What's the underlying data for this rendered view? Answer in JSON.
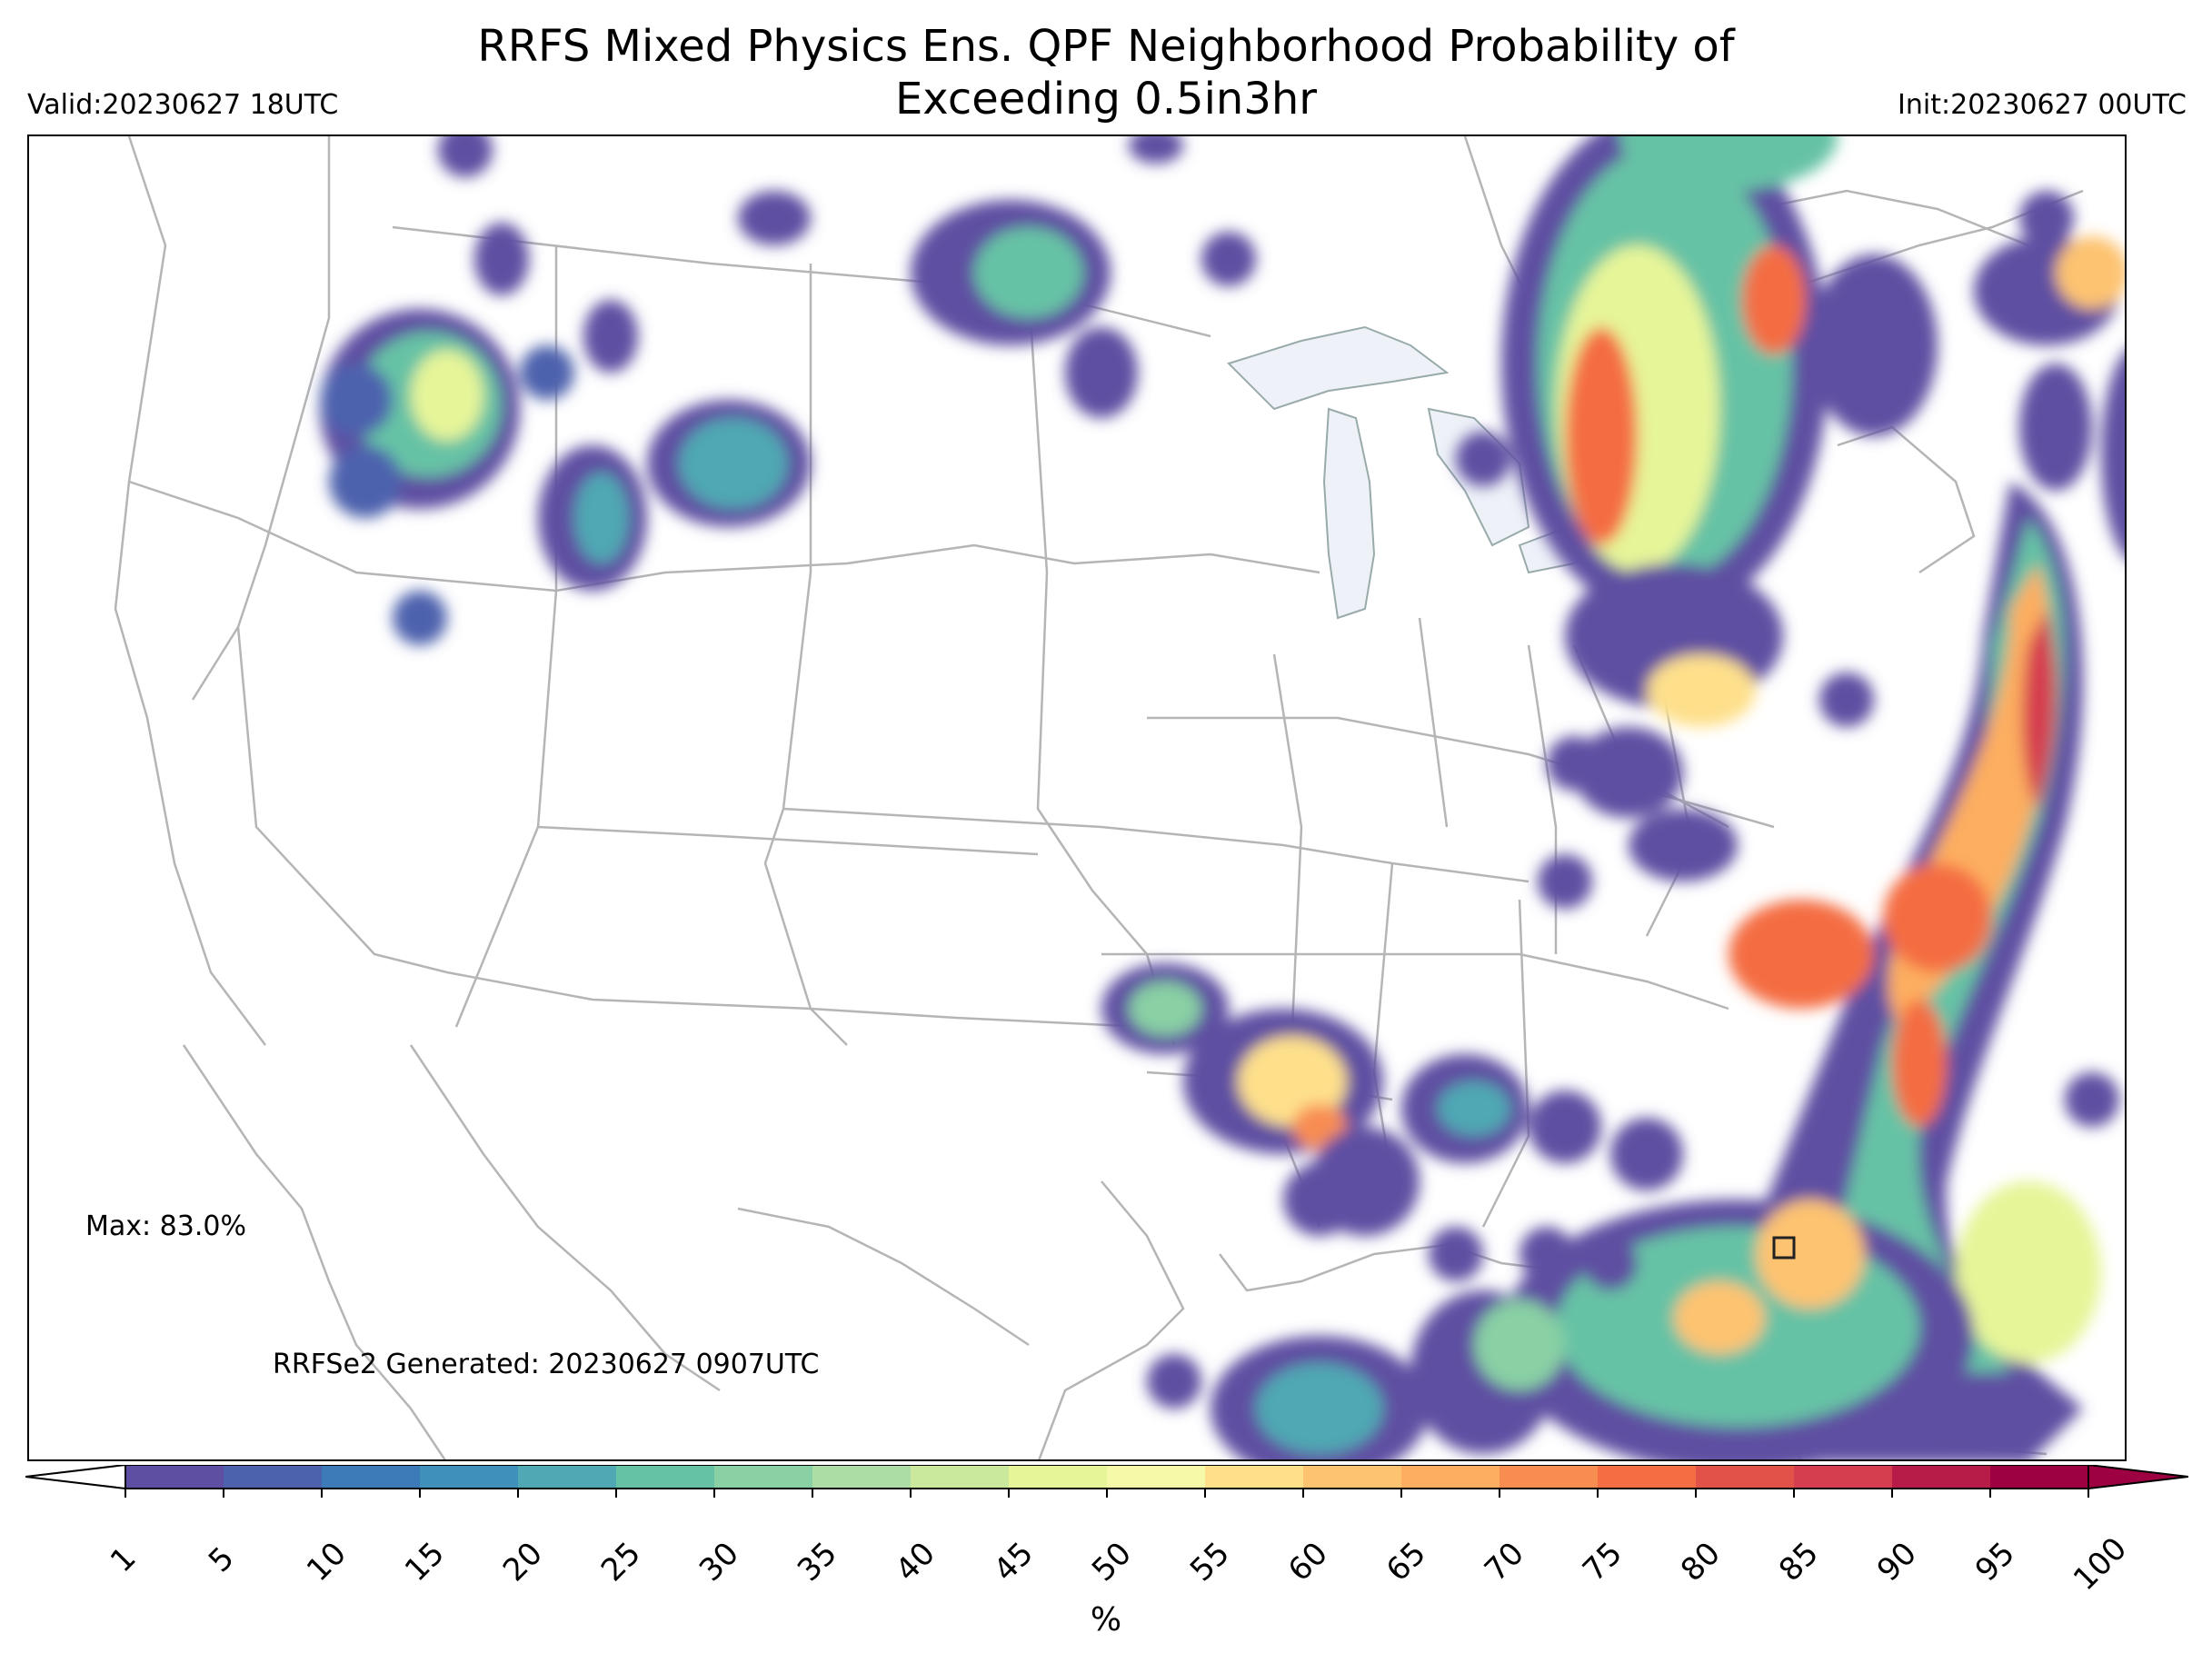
{
  "title": "RRFS Mixed Physics Ens. QPF Neighborhood Probability of Exceeding 0.5in3hr",
  "title_line1": "RRFS Mixed Physics Ens. QPF Neighborhood Probability of",
  "title_line2": "Exceeding 0.5in3hr",
  "valid": "Valid:20230627 18UTC",
  "init": "Init:20230627 00UTC",
  "max": "Max: 83.0%",
  "generated": "RRFSe2 Generated: 20230627 0907UTC",
  "colorbar": {
    "unit": "%",
    "ticks": [
      "1",
      "5",
      "10",
      "15",
      "20",
      "25",
      "30",
      "35",
      "40",
      "45",
      "50",
      "55",
      "60",
      "65",
      "70",
      "75",
      "80",
      "85",
      "90",
      "95",
      "100"
    ],
    "colors": [
      "#5e4fa2",
      "#4d62ad",
      "#3d7ab8",
      "#3f91bb",
      "#4fa8b4",
      "#66c2a5",
      "#89d0a4",
      "#abdda4",
      "#cbe99d",
      "#e6f598",
      "#f5f9a8",
      "#fee08b",
      "#fdc371",
      "#fdae61",
      "#f88d52",
      "#f46d43",
      "#e35249",
      "#d53e4f",
      "#b71c48",
      "#9e0142"
    ],
    "extend": "both"
  },
  "map": {
    "region": "CONUS",
    "marker": "square-icon"
  }
}
